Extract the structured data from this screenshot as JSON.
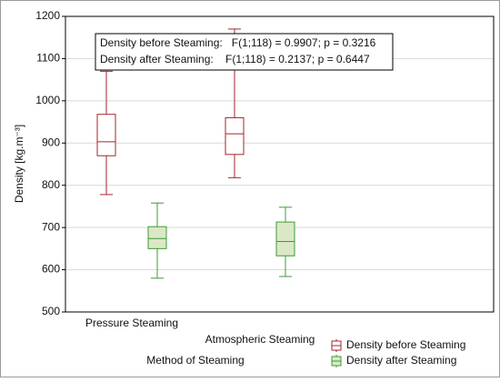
{
  "chart_data": {
    "type": "box",
    "y_label": "Density [kg.m⁻³]",
    "x_label": "Method of Steaming",
    "categories": [
      "Pressure Steaming",
      "Atmospheric Steaming"
    ],
    "annotations": [
      "Density before Steaming:   F(1;118) = 0.9907; p = 0.3216",
      "Density after Steaming:    F(1;118) = 0.2137; p = 0.6447"
    ],
    "series": [
      {
        "name": "Density before Steaming",
        "color": "#a3262c",
        "fill": "#ffffff",
        "low": [
          778,
          818
        ],
        "q1": [
          870,
          873
        ],
        "median": [
          903,
          922
        ],
        "q3": [
          968,
          960
        ],
        "high": [
          1070,
          1170
        ]
      },
      {
        "name": "Density after Steaming",
        "color": "#3e9b37",
        "fill": "#dbe8c6",
        "low": [
          580,
          584
        ],
        "q1": [
          650,
          633
        ],
        "median": [
          674,
          667
        ],
        "q3": [
          702,
          713
        ],
        "high": [
          758,
          748
        ]
      }
    ],
    "ylim": [
      500,
      1200
    ],
    "yticks": [
      500,
      600,
      700,
      800,
      900,
      1000,
      1100,
      1200
    ],
    "grid": true,
    "legend": "bottom-right"
  }
}
